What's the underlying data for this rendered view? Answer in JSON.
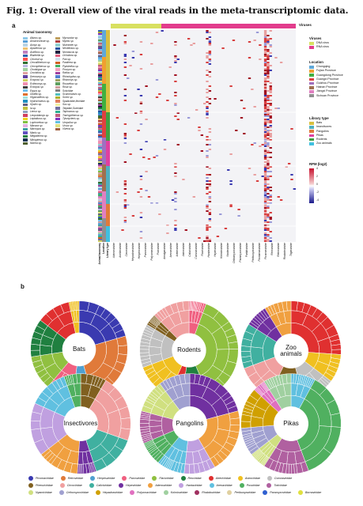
{
  "title": "Fig. 1: Overall view of the viral reads in the meta-transcriptomic data.",
  "panel_a": "a",
  "panel_b": "b",
  "taxonomy": {
    "heading": "Animal taxonomy",
    "col1": [
      {
        "name": "Ailurus sp.",
        "color": "#8fc8e8"
      },
      {
        "name": "Amurocoricae sp.",
        "color": "#5aa0d8"
      },
      {
        "name": "Aonyx sp.",
        "color": "#b9d3e4"
      },
      {
        "name": "Apodemus sp.",
        "color": "#f0c070"
      },
      {
        "name": "Asellicus sp.",
        "color": "#c080c0"
      },
      {
        "name": "Blarinella sp.",
        "color": "#3060b0"
      },
      {
        "name": "Cervical sp.",
        "color": "#ff5050"
      },
      {
        "name": "Cercalitherium sp.",
        "color": "#307030"
      },
      {
        "name": "Cercopithecus sp.",
        "color": "#b8b8e0"
      },
      {
        "name": "Chodsigoa sp.",
        "color": "#a0d0a0"
      },
      {
        "name": "Crocidura sp.",
        "color": "#e0a0a0"
      },
      {
        "name": "Dremomys sp.",
        "color": "#6040a0"
      },
      {
        "name": "Ecsposo sp.",
        "color": "#d0d060"
      },
      {
        "name": "Ecthnomys sp.",
        "color": "#f090b0"
      },
      {
        "name": "Ecsopus sp.",
        "color": "#404040"
      },
      {
        "name": "Equus sp.",
        "color": "#70c0f0"
      },
      {
        "name": "Giraffa sp.",
        "color": "#e07030"
      },
      {
        "name": "Hipposideros sp.",
        "color": "#a0e0e0"
      },
      {
        "name": "Hydrochoerus sp.",
        "color": "#2090c0"
      },
      {
        "name": "Hystrix sp.",
        "color": "#606080"
      },
      {
        "name": "Ia sp.",
        "color": "#c0c040"
      },
      {
        "name": "Lemur sp.",
        "color": "#90a0c0"
      },
      {
        "name": "Leopoldamys sp.",
        "color": "#d04060"
      },
      {
        "name": "Leptailurus sp.",
        "color": "#f0d020"
      },
      {
        "name": "Lophocebus sp.",
        "color": "#80c040"
      },
      {
        "name": "Macaca sp.",
        "color": "#e0b0e0"
      },
      {
        "name": "Macropus sp.",
        "color": "#40a0a0"
      },
      {
        "name": "Manis sp.",
        "color": "#6050c0"
      },
      {
        "name": "Megaderma sp.",
        "color": "#208040"
      },
      {
        "name": "Miniopterus sp.",
        "color": "#103050"
      },
      {
        "name": "Murina sp.",
        "color": "#506030"
      }
    ],
    "col2": [
      {
        "name": "Mycoustor sp.",
        "color": "#c0a060"
      },
      {
        "name": "Myotis sp.",
        "color": "#b04040"
      },
      {
        "name": "Niviventer sp.",
        "color": "#90d0d0"
      },
      {
        "name": "Neotetraus sp.",
        "color": "#2050a0"
      },
      {
        "name": "Nomascus sp.",
        "color": "#202040"
      },
      {
        "name": "Ochotona sp.",
        "color": "#e06080"
      },
      {
        "name": "Pan sp.",
        "color": "#d0e0f0"
      },
      {
        "name": "Panthera sp.",
        "color": "#d06020"
      },
      {
        "name": "Pipistrellus sp.",
        "color": "#40b060"
      },
      {
        "name": "Procyon sp.",
        "color": "#f0a0c0"
      },
      {
        "name": "Rattus sp.",
        "color": "#a040a0"
      },
      {
        "name": "Rhinolophus sp.",
        "color": "#5080d0"
      },
      {
        "name": "Rhizomys sp.",
        "color": "#a0a060"
      },
      {
        "name": "Rousettus sp.",
        "color": "#60a060"
      },
      {
        "name": "Rusa sp.",
        "color": "#d0a0a0"
      },
      {
        "name": "Sciuridae",
        "color": "#808080"
      },
      {
        "name": "Scuromanuis sp.",
        "color": "#50c0c0"
      },
      {
        "name": "Sorex sp.",
        "color": "#b0b030"
      },
      {
        "name": "Spalacidae,Muridae",
        "color": "#e08060"
      },
      {
        "name": "Sus sp.",
        "color": "#f0f0a0"
      },
      {
        "name": "Talpidae,Soricidae",
        "color": "#7070a0"
      },
      {
        "name": "Taphozous sp.",
        "color": "#30b090"
      },
      {
        "name": "Trachypithecus sp.",
        "color": "#c06080"
      },
      {
        "name": "Tylonycteris sp.",
        "color": "#8030c0"
      },
      {
        "name": "Uropsilus sp.",
        "color": "#60c0e0"
      },
      {
        "name": "Ursus sp.",
        "color": "#e0e080"
      },
      {
        "name": "Viverra sp.",
        "color": "#a06040"
      }
    ]
  },
  "viruses_label": "Viruses",
  "legend_viruses": {
    "heading": "Viruses",
    "items": [
      {
        "name": "DNA virus",
        "color": "#d8e060"
      },
      {
        "name": "RNA virus",
        "color": "#e23c8c"
      }
    ]
  },
  "legend_location": {
    "heading": "Location",
    "items": [
      {
        "name": "Chongqing",
        "color": "#5fa8d8"
      },
      {
        "name": "Fujian Province",
        "color": "#f0a030"
      },
      {
        "name": "Guangdong Province",
        "color": "#40b040"
      },
      {
        "name": "Guangxi Province",
        "color": "#e04040"
      },
      {
        "name": "Guizhou Province",
        "color": "#a070c0"
      },
      {
        "name": "Hainan Province",
        "color": "#a07050"
      },
      {
        "name": "Jiangxi Province",
        "color": "#e080c0"
      },
      {
        "name": "Sichuan Province",
        "color": "#909090"
      }
    ]
  },
  "legend_library": {
    "heading": "Library type",
    "items": [
      {
        "name": "Bats",
        "color": "#d8c040"
      },
      {
        "name": "Insectivores",
        "color": "#50b0c0"
      },
      {
        "name": "Pangolins",
        "color": "#e07a3a"
      },
      {
        "name": "Pikas",
        "color": "#e040a0"
      },
      {
        "name": "Rodents",
        "color": "#40a040"
      },
      {
        "name": "Zoo animals",
        "color": "#40c0e0"
      }
    ]
  },
  "legend_rpm": {
    "heading": "RPM (log2)",
    "ticks": [
      "4",
      "2",
      "0",
      "-2",
      "-4"
    ]
  },
  "sidebar_labels": [
    "Animal taxonomy",
    "Location",
    "Library type"
  ],
  "x_families": [
    "Adenoviridae",
    "Anelloviridae",
    "Circoviridae",
    "Hepadnaviridae",
    "Herpesviridae",
    "Parvoviridae",
    "Polyomaviridae",
    "Poxviridae",
    "Amalgaviridae",
    "Arenaviridae",
    "Arteriviridae",
    "Astroviridae",
    "Caliciviridae",
    "Coronaviridae",
    "Flaviviridae",
    "Hantaviridae",
    "Hepeviridae",
    "Kolmioviridae",
    "Nodaviridae",
    "Orthomyxoviridae",
    "Paramyxoviridae",
    "Partitiviridae",
    "Peribunyaviridae",
    "Picobirnaviridae",
    "Picornaviridae",
    "Reoviridae",
    "Retroviridae",
    "Rhabdoviridae",
    "Togaviridae"
  ],
  "wheels": [
    {
      "label": "Bats"
    },
    {
      "label": "Rodents"
    },
    {
      "label": "Zoo animals"
    },
    {
      "label": "Insectivores"
    },
    {
      "label": "Pangolins"
    },
    {
      "label": "Pikas"
    }
  ],
  "bottom_legend": [
    {
      "name": "Picornaviridae",
      "color": "#3a3ab0"
    },
    {
      "name": "Retroviridae",
      "color": "#e07a3a"
    },
    {
      "name": "Herpesviridae",
      "color": "#50a0d0"
    },
    {
      "name": "Parvoviridae",
      "color": "#f06080"
    },
    {
      "name": "Flaviviridae",
      "color": "#90c040"
    },
    {
      "name": "Reoviridae",
      "color": "#208040"
    },
    {
      "name": "Arteriviridae",
      "color": "#e03030"
    },
    {
      "name": "Astroviridae",
      "color": "#f0c020"
    },
    {
      "name": "Coronaviridae",
      "color": "#c0c0c0"
    },
    {
      "name": "Phenuiviridae",
      "color": "#806020"
    },
    {
      "name": "Circoviridae",
      "color": "#f0a0a0"
    },
    {
      "name": "Caliciviridae",
      "color": "#40b0a0"
    },
    {
      "name": "Hepeviridae",
      "color": "#7030a0"
    },
    {
      "name": "Adenoviridae",
      "color": "#f0a040"
    },
    {
      "name": "Hantaviridae",
      "color": "#c0a0e0"
    },
    {
      "name": "Arenaviridae",
      "color": "#60c0e0"
    },
    {
      "name": "Poxviridae",
      "color": "#50b060"
    },
    {
      "name": "Totiviridae",
      "color": "#b060a0"
    },
    {
      "name": "Nyamiviridae",
      "color": "#d0e080"
    },
    {
      "name": "Orthomyxoviridae",
      "color": "#a0a0d0"
    },
    {
      "name": "Hepadnaviridae",
      "color": "#d0a000"
    },
    {
      "name": "Polyomaviridae",
      "color": "#e070c0"
    },
    {
      "name": "Kolmioviridae",
      "color": "#a0d0a0"
    },
    {
      "name": "Rhabdoviridae",
      "color": "#a03060"
    },
    {
      "name": "Peribunyaviridae",
      "color": "#e0d0a0"
    },
    {
      "name": "Paramyxoviridae",
      "color": "#3060d0"
    },
    {
      "name": "Bornaviridae",
      "color": "#e0e040"
    }
  ]
}
